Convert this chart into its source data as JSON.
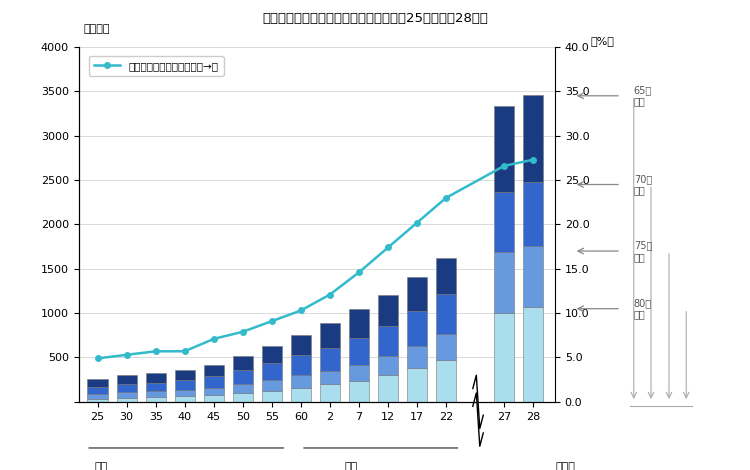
{
  "title": "図１　高齢者人口及び割合の推移（昭和25年～平成28年）",
  "ylabel_left": "（万人）",
  "ylabel_right": "（%）",
  "year_labels": [
    "25",
    "30",
    "35",
    "40",
    "45",
    "50",
    "55",
    "60",
    "2",
    "7",
    "12",
    "17",
    "22",
    "27",
    "28"
  ],
  "era_showa": "昭和",
  "era_heisei": "平成",
  "year_unit": "（年）",
  "seg_80": [
    37,
    46,
    52,
    62,
    78,
    100,
    127,
    159,
    196,
    240,
    302,
    384,
    473,
    1002,
    1073
  ],
  "seg_75": [
    53,
    60,
    65,
    73,
    83,
    101,
    122,
    142,
    157,
    181,
    215,
    245,
    296,
    688,
    681
  ],
  "seg_70": [
    79,
    91,
    101,
    111,
    126,
    157,
    187,
    223,
    249,
    294,
    336,
    393,
    444,
    670,
    726
  ],
  "seg_65": [
    92,
    101,
    102,
    111,
    127,
    160,
    191,
    232,
    291,
    332,
    351,
    385,
    406,
    980,
    979
  ],
  "pct": [
    4.9,
    5.3,
    5.7,
    5.7,
    7.1,
    7.9,
    9.1,
    10.3,
    12.1,
    14.6,
    17.4,
    20.2,
    23.0,
    26.6,
    27.3
  ],
  "color_65": "#1a3a82",
  "color_70": "#3366cc",
  "color_75": "#6699dd",
  "color_80": "#aaddee",
  "color_line": "#33bbcc",
  "ylim_left": 4000,
  "ylim_right": 40.0,
  "yticks_left": [
    0,
    500,
    1000,
    1500,
    2000,
    2500,
    3000,
    3500,
    4000
  ],
  "yticks_right": [
    0.0,
    5.0,
    10.0,
    15.0,
    20.0,
    25.0,
    30.0,
    35.0,
    40.0
  ],
  "legend_label": "高齢者人口の割合（右目盛→）",
  "ann_65": "65歳\n以上",
  "ann_70": "70歳\n以上",
  "ann_75": "75歳\n以上",
  "ann_80": "80歳\n以上",
  "ann_pct_65": 34.5,
  "ann_pct_70": 24.5,
  "ann_pct_75": 17.0,
  "ann_pct_80": 10.5,
  "background_color": "#ffffff"
}
